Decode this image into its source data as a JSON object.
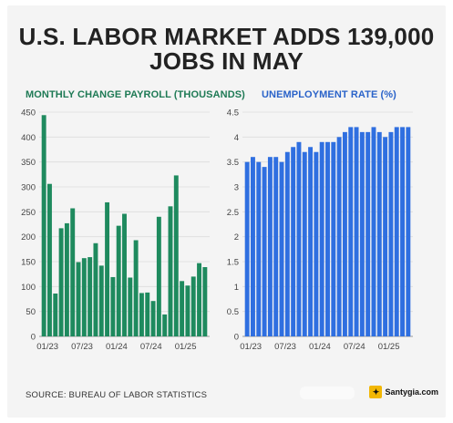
{
  "title": {
    "line1": "U.S. LABOR MARKET ADDS 139,000",
    "line2": "JOBS IN MAY"
  },
  "source": "SOURCE: BUREAU OF LABOR STATISTICS",
  "watermark": {
    "badge": "✦",
    "text": "Santygia.com"
  },
  "chart_data": [
    {
      "type": "bar",
      "title": "MONTHLY CHANGE PAYROLL (THOUSANDS)",
      "color": "#1e8a5e",
      "title_color": "#1e7a55",
      "ylim": [
        0,
        450
      ],
      "yticks": [
        0,
        50,
        100,
        150,
        200,
        250,
        300,
        350,
        400,
        450
      ],
      "ytick_labels": [
        "0",
        "50",
        "100",
        "150",
        "200",
        "250",
        "300",
        "350",
        "400",
        "450"
      ],
      "x_tick_labels": [
        {
          "label": "01/23",
          "index": 0
        },
        {
          "label": "07/23",
          "index": 6
        },
        {
          "label": "01/24",
          "index": 12
        },
        {
          "label": "07/24",
          "index": 18
        },
        {
          "label": "01/25",
          "index": 24
        }
      ],
      "categories": [
        "01/23",
        "02/23",
        "03/23",
        "04/23",
        "05/23",
        "06/23",
        "07/23",
        "08/23",
        "09/23",
        "10/23",
        "11/23",
        "12/23",
        "01/24",
        "02/24",
        "03/24",
        "04/24",
        "05/24",
        "06/24",
        "07/24",
        "08/24",
        "09/24",
        "10/24",
        "11/24",
        "12/24",
        "01/25",
        "02/25",
        "03/25",
        "04/25",
        "05/25"
      ],
      "values": [
        444,
        306,
        86,
        217,
        227,
        257,
        149,
        157,
        159,
        187,
        142,
        269,
        119,
        222,
        246,
        118,
        193,
        87,
        88,
        71,
        240,
        44,
        261,
        323,
        111,
        102,
        120,
        147,
        139
      ],
      "grid": "horizontal"
    },
    {
      "type": "bar",
      "title": "UNEMPLOYMENT RATE (%)",
      "color": "#2f6fe0",
      "title_color": "#2a63c9",
      "ylim": [
        0,
        4.5
      ],
      "yticks": [
        0,
        0.5,
        1,
        1.5,
        2,
        2.5,
        3,
        3.5,
        4,
        4.5
      ],
      "ytick_labels": [
        "0",
        "0.5",
        "1",
        "1.5",
        "2",
        "2.5",
        "3",
        "3.5",
        "4",
        "4.5"
      ],
      "x_tick_labels": [
        {
          "label": "01/23",
          "index": 0
        },
        {
          "label": "07/23",
          "index": 6
        },
        {
          "label": "01/24",
          "index": 12
        },
        {
          "label": "07/24",
          "index": 18
        },
        {
          "label": "01/25",
          "index": 24
        }
      ],
      "categories": [
        "01/23",
        "02/23",
        "03/23",
        "04/23",
        "05/23",
        "06/23",
        "07/23",
        "08/23",
        "09/23",
        "10/23",
        "11/23",
        "12/23",
        "01/24",
        "02/24",
        "03/24",
        "04/24",
        "05/24",
        "06/24",
        "07/24",
        "08/24",
        "09/24",
        "10/24",
        "11/24",
        "12/24",
        "01/25",
        "02/25",
        "03/25",
        "04/25",
        "05/25"
      ],
      "values": [
        3.5,
        3.6,
        3.5,
        3.4,
        3.6,
        3.6,
        3.5,
        3.7,
        3.8,
        3.9,
        3.7,
        3.8,
        3.7,
        3.9,
        3.9,
        3.9,
        4.0,
        4.1,
        4.2,
        4.2,
        4.1,
        4.1,
        4.2,
        4.1,
        4.0,
        4.1,
        4.2,
        4.2,
        4.2
      ],
      "grid": "horizontal"
    }
  ]
}
